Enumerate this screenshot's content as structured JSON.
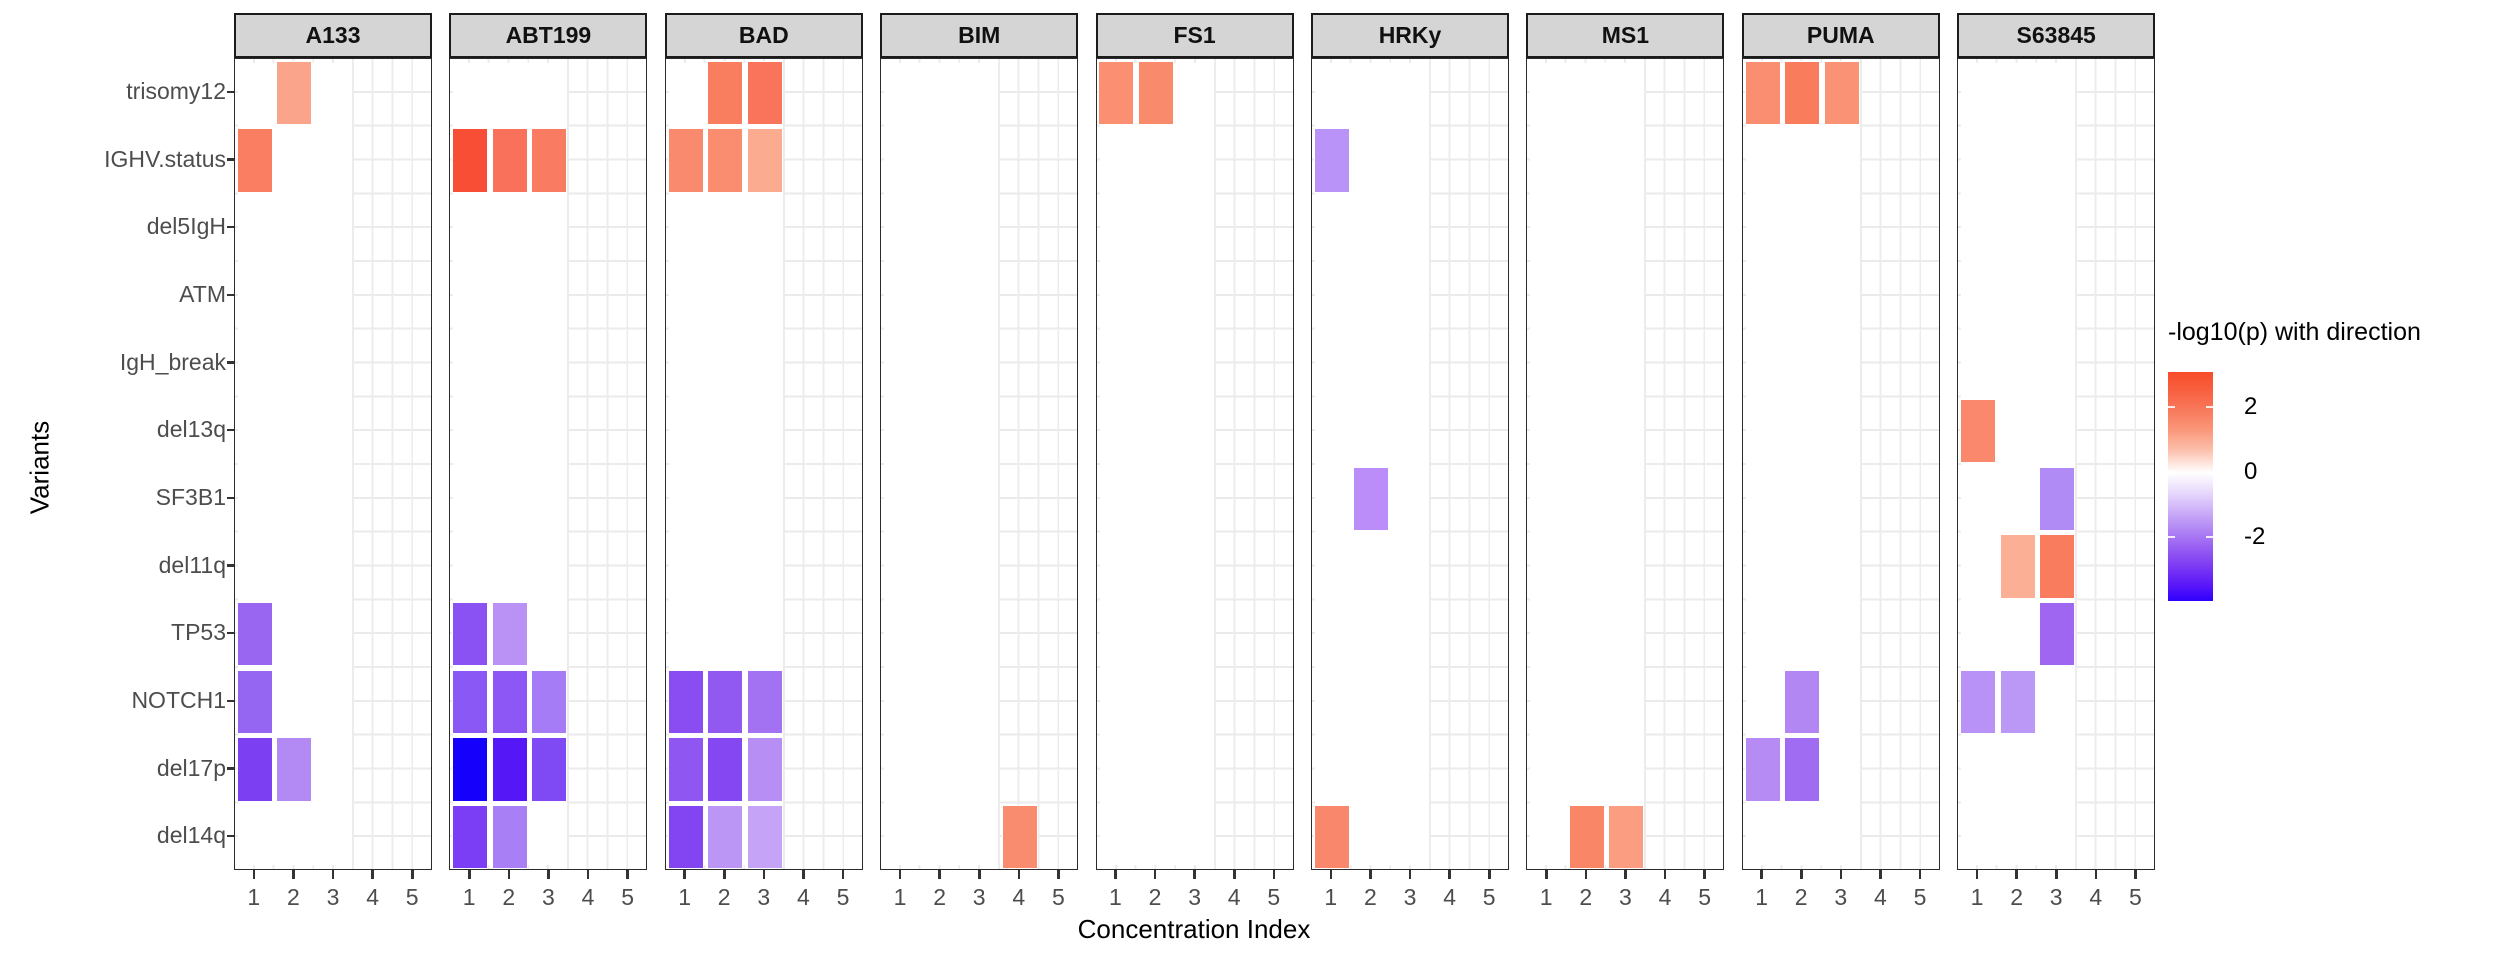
{
  "chart_data": {
    "type": "heatmap",
    "xlabel": "Concentration Index",
    "ylabel": "Variants",
    "facets": [
      "A133",
      "ABT199",
      "BAD",
      "BIM",
      "FS1",
      "HRKy",
      "MS1",
      "PUMA",
      "S63845"
    ],
    "y_categories": [
      "trisomy12",
      "IGHV.status",
      "del5IgH",
      "ATM",
      "IgH_break",
      "del13q",
      "SF3B1",
      "del11q",
      "TP53",
      "NOTCH1",
      "del17p",
      "del14q"
    ],
    "x_categories": [
      "1",
      "2",
      "3",
      "4",
      "5"
    ],
    "layout_hints": {
      "grid": "major and minor, light gray",
      "legend_position": "right",
      "tile_border": "white"
    },
    "legend": {
      "title": "-log10(p) with direction",
      "tick_labels": [
        "2",
        "0",
        "-2"
      ],
      "tick_values": [
        2,
        0,
        -2
      ],
      "range": [
        -4,
        3
      ],
      "color_high": "#f84c29",
      "color_mid": "#ffffff",
      "color_low": "#2e00fd"
    },
    "tiles": [
      {
        "facet": "A133",
        "variant": "trisomy12",
        "x": 2,
        "value": 1.5,
        "color": "#fba48c"
      },
      {
        "facet": "A133",
        "variant": "IGHV.status",
        "x": 1,
        "value": 2.1,
        "color": "#fa7e62"
      },
      {
        "facet": "A133",
        "variant": "TP53",
        "x": 1,
        "value": -2.1,
        "color": "#9966f1"
      },
      {
        "facet": "A133",
        "variant": "NOTCH1",
        "x": 1,
        "value": -2.2,
        "color": "#9466f1"
      },
      {
        "facet": "A133",
        "variant": "del17p",
        "x": 1,
        "value": -2.7,
        "color": "#7c40f2"
      },
      {
        "facet": "A133",
        "variant": "del17p",
        "x": 2,
        "value": -1.6,
        "color": "#b38af4"
      },
      {
        "facet": "ABT199",
        "variant": "IGHV.status",
        "x": 1,
        "value": 2.9,
        "color": "#f94e36"
      },
      {
        "facet": "ABT199",
        "variant": "IGHV.status",
        "x": 2,
        "value": 2.4,
        "color": "#f9715a"
      },
      {
        "facet": "ABT199",
        "variant": "IGHV.status",
        "x": 3,
        "value": 2.3,
        "color": "#f97b62"
      },
      {
        "facet": "ABT199",
        "variant": "TP53",
        "x": 1,
        "value": -2.4,
        "color": "#8a52f2"
      },
      {
        "facet": "ABT199",
        "variant": "TP53",
        "x": 2,
        "value": -1.5,
        "color": "#ba92f6"
      },
      {
        "facet": "ABT199",
        "variant": "NOTCH1",
        "x": 1,
        "value": -2.4,
        "color": "#8a59f5"
      },
      {
        "facet": "ABT199",
        "variant": "NOTCH1",
        "x": 2,
        "value": -2.4,
        "color": "#8c57f4"
      },
      {
        "facet": "ABT199",
        "variant": "NOTCH1",
        "x": 3,
        "value": -1.8,
        "color": "#a67cf6"
      },
      {
        "facet": "ABT199",
        "variant": "del17p",
        "x": 1,
        "value": -4.0,
        "color": "#1500fb"
      },
      {
        "facet": "ABT199",
        "variant": "del17p",
        "x": 2,
        "value": -3.2,
        "color": "#5517f5"
      },
      {
        "facet": "ABT199",
        "variant": "del17p",
        "x": 3,
        "value": -2.6,
        "color": "#7f4af4"
      },
      {
        "facet": "ABT199",
        "variant": "del14q",
        "x": 1,
        "value": -2.7,
        "color": "#7c3ef5"
      },
      {
        "facet": "ABT199",
        "variant": "del14q",
        "x": 2,
        "value": -1.8,
        "color": "#a97ff6"
      },
      {
        "facet": "BAD",
        "variant": "trisomy12",
        "x": 2,
        "value": 2.2,
        "color": "#f97e60"
      },
      {
        "facet": "BAD",
        "variant": "trisomy12",
        "x": 3,
        "value": 2.3,
        "color": "#f9745a"
      },
      {
        "facet": "BAD",
        "variant": "IGHV.status",
        "x": 1,
        "value": 2.0,
        "color": "#fa8a6d"
      },
      {
        "facet": "BAD",
        "variant": "IGHV.status",
        "x": 2,
        "value": 1.9,
        "color": "#fa8c6f"
      },
      {
        "facet": "BAD",
        "variant": "IGHV.status",
        "x": 3,
        "value": 1.4,
        "color": "#fbab8f"
      },
      {
        "facet": "BAD",
        "variant": "NOTCH1",
        "x": 1,
        "value": -2.5,
        "color": "#8a4df1"
      },
      {
        "facet": "BAD",
        "variant": "NOTCH1",
        "x": 2,
        "value": -2.3,
        "color": "#9159f1"
      },
      {
        "facet": "BAD",
        "variant": "NOTCH1",
        "x": 3,
        "value": -1.9,
        "color": "#a372f2"
      },
      {
        "facet": "BAD",
        "variant": "del17p",
        "x": 1,
        "value": -2.3,
        "color": "#9056f1"
      },
      {
        "facet": "BAD",
        "variant": "del17p",
        "x": 2,
        "value": -2.6,
        "color": "#8547f1"
      },
      {
        "facet": "BAD",
        "variant": "del17p",
        "x": 3,
        "value": -1.5,
        "color": "#b78ff4"
      },
      {
        "facet": "BAD",
        "variant": "del14q",
        "x": 1,
        "value": -2.6,
        "color": "#8344f1"
      },
      {
        "facet": "BAD",
        "variant": "del14q",
        "x": 2,
        "value": -1.4,
        "color": "#bc96f5"
      },
      {
        "facet": "BAD",
        "variant": "del14q",
        "x": 3,
        "value": -1.2,
        "color": "#c5a3f6"
      },
      {
        "facet": "BIM",
        "variant": "del14q",
        "x": 4,
        "value": 1.9,
        "color": "#f98c6e"
      },
      {
        "facet": "FS1",
        "variant": "trisomy12",
        "x": 1,
        "value": 1.9,
        "color": "#fa8f71"
      },
      {
        "facet": "FS1",
        "variant": "trisomy12",
        "x": 2,
        "value": 2.0,
        "color": "#fa8a6c"
      },
      {
        "facet": "HRKy",
        "variant": "IGHV.status",
        "x": 1,
        "value": -1.5,
        "color": "#b993f8"
      },
      {
        "facet": "HRKy",
        "variant": "SF3B1",
        "x": 2,
        "value": -1.5,
        "color": "#bb8df8"
      },
      {
        "facet": "HRKy",
        "variant": "del14q",
        "x": 1,
        "value": 2.0,
        "color": "#f9876b"
      },
      {
        "facet": "MS1",
        "variant": "del14q",
        "x": 2,
        "value": 2.0,
        "color": "#f98667"
      },
      {
        "facet": "MS1",
        "variant": "del14q",
        "x": 3,
        "value": 1.6,
        "color": "#fb9d80"
      },
      {
        "facet": "PUMA",
        "variant": "trisomy12",
        "x": 1,
        "value": 1.9,
        "color": "#fa8e70"
      },
      {
        "facet": "PUMA",
        "variant": "trisomy12",
        "x": 2,
        "value": 2.2,
        "color": "#f97c5d"
      },
      {
        "facet": "PUMA",
        "variant": "trisomy12",
        "x": 3,
        "value": 1.8,
        "color": "#fa9375"
      },
      {
        "facet": "PUMA",
        "variant": "NOTCH1",
        "x": 2,
        "value": -1.6,
        "color": "#b286f3"
      },
      {
        "facet": "PUMA",
        "variant": "del17p",
        "x": 1,
        "value": -1.5,
        "color": "#b68cf4"
      },
      {
        "facet": "PUMA",
        "variant": "del17p",
        "x": 2,
        "value": -1.9,
        "color": "#a06cf2"
      },
      {
        "facet": "S63845",
        "variant": "del13q",
        "x": 1,
        "value": 2.0,
        "color": "#f9886c"
      },
      {
        "facet": "S63845",
        "variant": "SF3B1",
        "x": 3,
        "value": -1.6,
        "color": "#b18bf5"
      },
      {
        "facet": "S63845",
        "variant": "del11q",
        "x": 2,
        "value": 1.3,
        "color": "#fbb096"
      },
      {
        "facet": "S63845",
        "variant": "del11q",
        "x": 3,
        "value": 2.1,
        "color": "#f97c5f"
      },
      {
        "facet": "S63845",
        "variant": "TP53",
        "x": 3,
        "value": -1.9,
        "color": "#9f66f1"
      },
      {
        "facet": "S63845",
        "variant": "NOTCH1",
        "x": 1,
        "value": -1.5,
        "color": "#b892f6"
      },
      {
        "facet": "S63845",
        "variant": "NOTCH1",
        "x": 2,
        "value": -1.5,
        "color": "#bb97f6"
      }
    ]
  }
}
